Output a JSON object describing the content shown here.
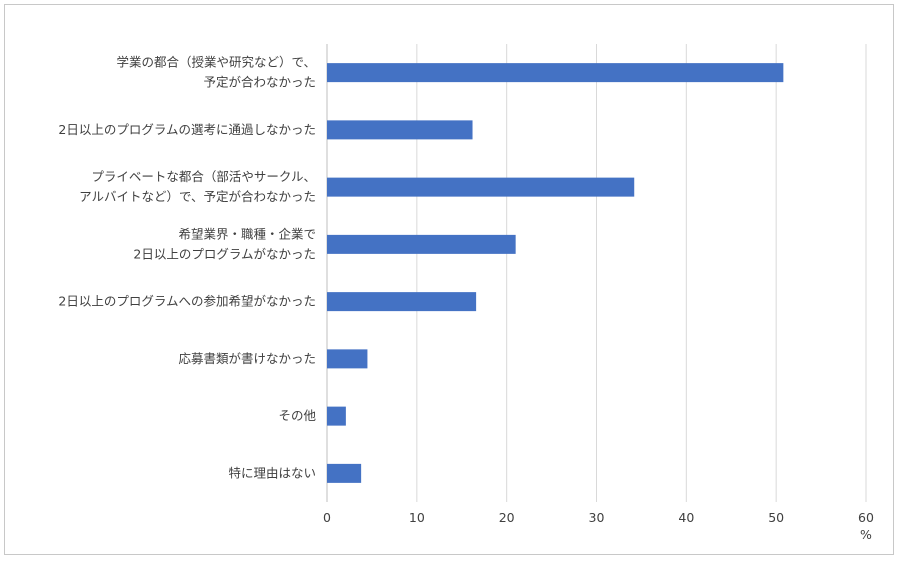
{
  "chart_data": {
    "type": "bar",
    "orientation": "horizontal",
    "categories": [
      [
        "学業の都合（授業や研究など）で、",
        "予定が合わなかった"
      ],
      [
        "2日以上のプログラムの選考に通過しなかった"
      ],
      [
        "プライベートな都合（部活やサークル、",
        "アルバイトなど）で、予定が合わなかった"
      ],
      [
        "希望業界・職種・企業で",
        "2日以上のプログラムがなかった"
      ],
      [
        "2日以上のプログラムへの参加希望がなかった"
      ],
      [
        "応募書類が書けなかった"
      ],
      [
        "その他"
      ],
      [
        "特に理由はない"
      ]
    ],
    "values": [
      50.8,
      16.2,
      34.2,
      21.0,
      16.6,
      4.5,
      2.1,
      3.8
    ],
    "xlim": [
      0,
      60
    ],
    "xticks": [
      "0",
      "10",
      "20",
      "30",
      "40",
      "50",
      "60"
    ],
    "xunit": "%",
    "title": "",
    "grid": true,
    "legend": "none",
    "bar_color": "#4472c4"
  }
}
